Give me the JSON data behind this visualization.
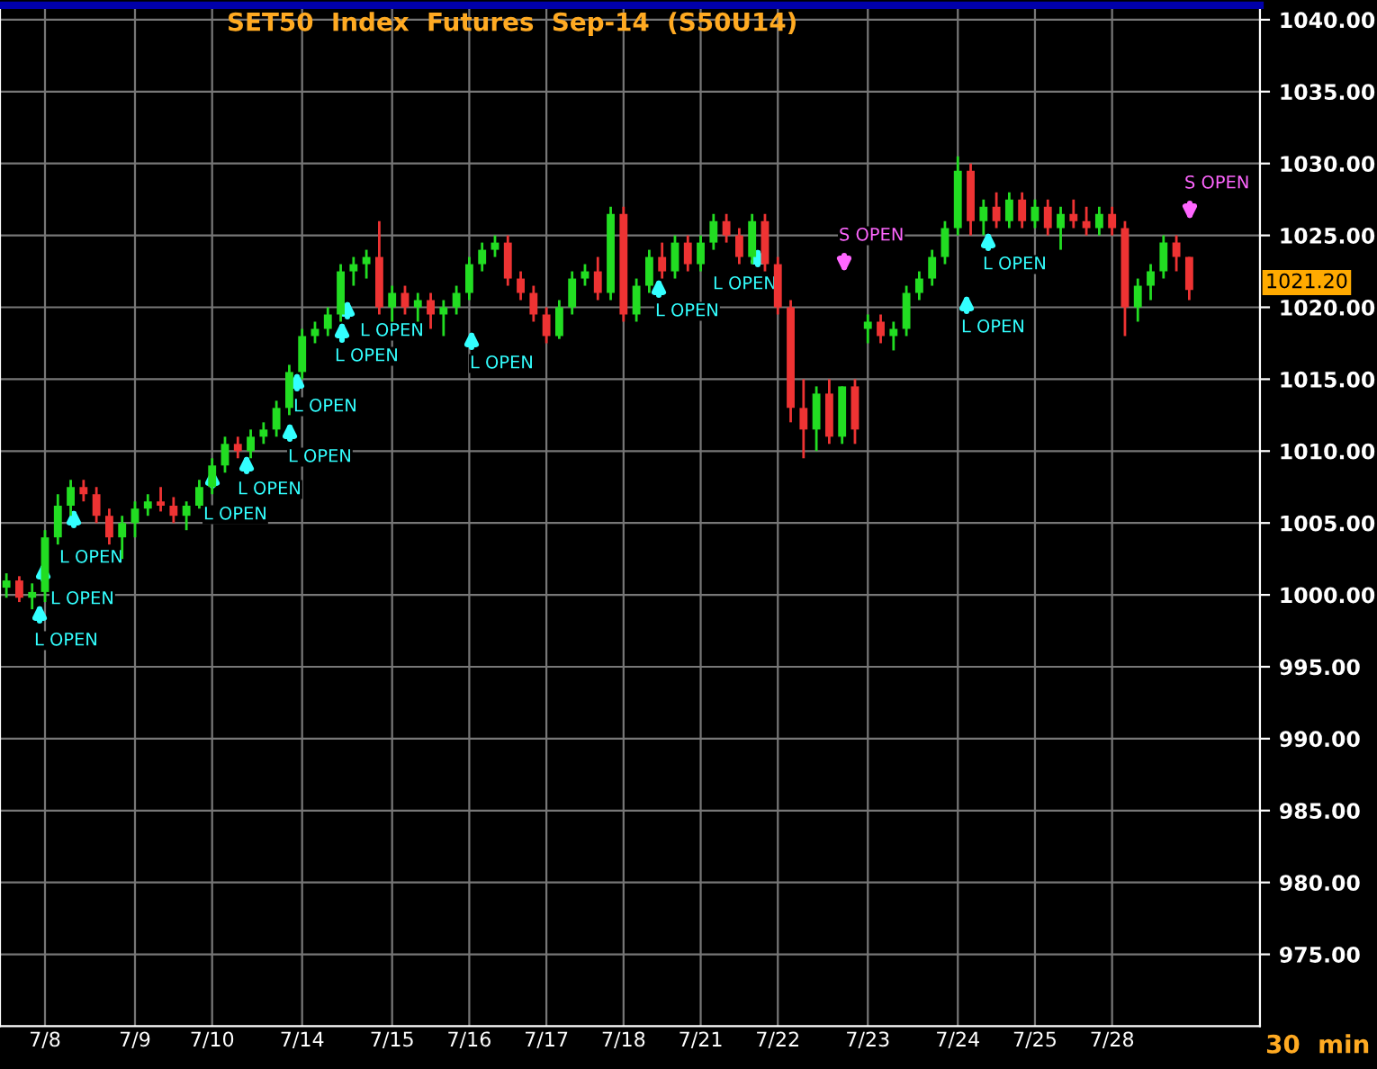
{
  "chart_data": {
    "type": "candlestick",
    "title": "SET50  Index  Futures  Sep-14  (S50U14)",
    "categories": [
      null,
      null,
      null,
      "7/8",
      null,
      null,
      null,
      null,
      null,
      null,
      "7/9",
      null,
      null,
      null,
      null,
      null,
      "7/10",
      null,
      null,
      null,
      null,
      null,
      null,
      "7/14",
      null,
      null,
      null,
      null,
      null,
      null,
      "7/15",
      null,
      null,
      null,
      null,
      null,
      "7/16",
      null,
      null,
      null,
      null,
      null,
      "7/17",
      null,
      null,
      null,
      null,
      null,
      "7/18",
      null,
      null,
      null,
      null,
      null,
      "7/21",
      null,
      null,
      null,
      null,
      null,
      "7/22",
      null,
      null,
      null,
      null,
      null,
      null,
      "7/23",
      null,
      null,
      null,
      null,
      null,
      null,
      "7/24",
      null,
      null,
      null,
      null,
      null,
      "7/25",
      null,
      null,
      null,
      null,
      null,
      "7/28",
      null,
      null,
      null,
      null,
      null,
      null
    ],
    "ohlc": [
      [
        1000.5,
        1001.5,
        999.8,
        1001
      ],
      [
        1001,
        1001.3,
        999.5,
        999.8
      ],
      [
        999.8,
        1000.8,
        999,
        1000.2
      ],
      [
        1000.2,
        1004.5,
        999.5,
        1004
      ],
      [
        1004,
        1007,
        1003.5,
        1006.2
      ],
      [
        1006.2,
        1008,
        1005.5,
        1007.5
      ],
      [
        1007.5,
        1008,
        1006.5,
        1007
      ],
      [
        1007,
        1007.5,
        1005,
        1005.5
      ],
      [
        1005.5,
        1006,
        1003.5,
        1004
      ],
      [
        1004,
        1005.5,
        1002.5,
        1005
      ],
      [
        1005,
        1006.5,
        1004,
        1006
      ],
      [
        1006,
        1007,
        1005.5,
        1006.5
      ],
      [
        1006.5,
        1007.5,
        1005.8,
        1006.2
      ],
      [
        1006.2,
        1006.8,
        1005,
        1005.5
      ],
      [
        1005.5,
        1006.5,
        1004.5,
        1006.2
      ],
      [
        1006.2,
        1008,
        1006,
        1007.5
      ],
      [
        1007.5,
        1009.5,
        1007,
        1009
      ],
      [
        1009,
        1011,
        1008.5,
        1010.5
      ],
      [
        1010.5,
        1011,
        1009.5,
        1010
      ],
      [
        1010,
        1011.5,
        1009.5,
        1011
      ],
      [
        1011,
        1012,
        1010.5,
        1011.5
      ],
      [
        1011.5,
        1013.5,
        1011,
        1013
      ],
      [
        1013,
        1016,
        1012.5,
        1015.5
      ],
      [
        1015.5,
        1018.5,
        1015,
        1018
      ],
      [
        1018,
        1019,
        1017.5,
        1018.5
      ],
      [
        1018.5,
        1020,
        1018,
        1019.5
      ],
      [
        1019.5,
        1023,
        1019,
        1022.5
      ],
      [
        1022.5,
        1023.5,
        1021.5,
        1023
      ],
      [
        1023,
        1024,
        1022,
        1023.5
      ],
      [
        1023.5,
        1026,
        1019.5,
        1020
      ],
      [
        1020,
        1021.5,
        1019,
        1021
      ],
      [
        1021,
        1021.5,
        1019.5,
        1020
      ],
      [
        1020,
        1021,
        1019,
        1020.5
      ],
      [
        1020.5,
        1021,
        1018.5,
        1019.5
      ],
      [
        1019.5,
        1020.5,
        1018,
        1020
      ],
      [
        1020,
        1021.5,
        1019.5,
        1021
      ],
      [
        1021,
        1023.5,
        1020.5,
        1023
      ],
      [
        1023,
        1024.5,
        1022.5,
        1024
      ],
      [
        1024,
        1025,
        1023.5,
        1024.5
      ],
      [
        1024.5,
        1025,
        1021.5,
        1022
      ],
      [
        1022,
        1022.5,
        1020.5,
        1021
      ],
      [
        1021,
        1021.5,
        1019,
        1019.5
      ],
      [
        1019.5,
        1020,
        1017.5,
        1018
      ],
      [
        1018,
        1020.5,
        1017.8,
        1020
      ],
      [
        1020,
        1022.5,
        1019.5,
        1022
      ],
      [
        1022,
        1023,
        1021.5,
        1022.5
      ],
      [
        1022.5,
        1023.5,
        1020.5,
        1021
      ],
      [
        1021,
        1027,
        1020.5,
        1026.5
      ],
      [
        1026.5,
        1027,
        1019,
        1019.5
      ],
      [
        1019.5,
        1022,
        1019,
        1021.5
      ],
      [
        1021.5,
        1024,
        1021,
        1023.5
      ],
      [
        1023.5,
        1024.5,
        1022,
        1022.5
      ],
      [
        1022.5,
        1025,
        1022,
        1024.5
      ],
      [
        1024.5,
        1025,
        1022.5,
        1023
      ],
      [
        1023,
        1025,
        1022.5,
        1024.5
      ],
      [
        1024.5,
        1026.5,
        1024,
        1026
      ],
      [
        1026,
        1026.5,
        1024.5,
        1025
      ],
      [
        1025,
        1025.5,
        1023,
        1023.5
      ],
      [
        1023.5,
        1026.5,
        1023,
        1026
      ],
      [
        1026,
        1026.5,
        1022.5,
        1023
      ],
      [
        1023,
        1023.5,
        1019.5,
        1020
      ],
      [
        1020,
        1020.5,
        1012,
        1013
      ],
      [
        1013,
        1015,
        1009.5,
        1011.5
      ],
      [
        1011.5,
        1014.5,
        1010,
        1014
      ],
      [
        1014,
        1015,
        1010.5,
        1011
      ],
      [
        1011,
        1014.5,
        1010.5,
        1014.5
      ],
      [
        1014.5,
        1015,
        1010.5,
        1011.5
      ],
      [
        1018.5,
        1019.5,
        1017.5,
        1019
      ],
      [
        1019,
        1019.5,
        1017.5,
        1018
      ],
      [
        1018,
        1019,
        1017,
        1018.5
      ],
      [
        1018.5,
        1021.5,
        1018,
        1021
      ],
      [
        1021,
        1022.5,
        1020.5,
        1022
      ],
      [
        1022,
        1024,
        1021.5,
        1023.5
      ],
      [
        1023.5,
        1026,
        1023,
        1025.5
      ],
      [
        1025.5,
        1030.5,
        1025,
        1029.5
      ],
      [
        1029.5,
        1030,
        1025,
        1026
      ],
      [
        1026,
        1027.5,
        1025,
        1027
      ],
      [
        1027,
        1028,
        1025.5,
        1026
      ],
      [
        1026,
        1028,
        1025.5,
        1027.5
      ],
      [
        1027.5,
        1028,
        1025.5,
        1026
      ],
      [
        1026,
        1027.5,
        1025.5,
        1027
      ],
      [
        1027,
        1027.5,
        1025,
        1025.5
      ],
      [
        1025.5,
        1027,
        1024,
        1026.5
      ],
      [
        1026.5,
        1027.5,
        1025.5,
        1026
      ],
      [
        1026,
        1027,
        1025,
        1025.5
      ],
      [
        1025.5,
        1027,
        1025,
        1026.5
      ],
      [
        1026.5,
        1027,
        1025,
        1025.5
      ],
      [
        1025.5,
        1026,
        1018,
        1020
      ],
      [
        1020,
        1022,
        1019,
        1021.5
      ],
      [
        1021.5,
        1023,
        1020.5,
        1022.5
      ],
      [
        1022.5,
        1025,
        1022,
        1024.5
      ],
      [
        1024.5,
        1025,
        1022.5,
        1023.5
      ],
      [
        1023.5,
        1023.5,
        1020.5,
        1021.2
      ]
    ],
    "ylim": [
      970,
      1041
    ],
    "yticks": [
      {
        "value": 975,
        "label": "975.00"
      },
      {
        "value": 980,
        "label": "980.00"
      },
      {
        "value": 985,
        "label": "985.00"
      },
      {
        "value": 990,
        "label": "990.00"
      },
      {
        "value": 995,
        "label": "995.00"
      },
      {
        "value": 1000,
        "label": "1000.00"
      },
      {
        "value": 1005,
        "label": "1005.00"
      },
      {
        "value": 1010,
        "label": "1010.00"
      },
      {
        "value": 1015,
        "label": "1015.00"
      },
      {
        "value": 1020,
        "label": "1020.00"
      },
      {
        "value": 1025,
        "label": "1025.00"
      },
      {
        "value": 1030,
        "label": "1030.00"
      },
      {
        "value": 1035,
        "label": "1035.00"
      },
      {
        "value": 1040,
        "label": "1040.00"
      }
    ],
    "grid": true,
    "annotations": [
      "L OPEN",
      "L OPEN",
      "L OPEN",
      "L OPEN",
      "L OPEN",
      "L OPEN",
      "L OPEN",
      "L OPEN",
      "L OPEN",
      "L OPEN",
      "L OPEN",
      "L OPEN",
      "S OPEN",
      "L OPEN",
      "L OPEN",
      "S OPEN",
      "1021.20",
      "30  min"
    ]
  }
}
